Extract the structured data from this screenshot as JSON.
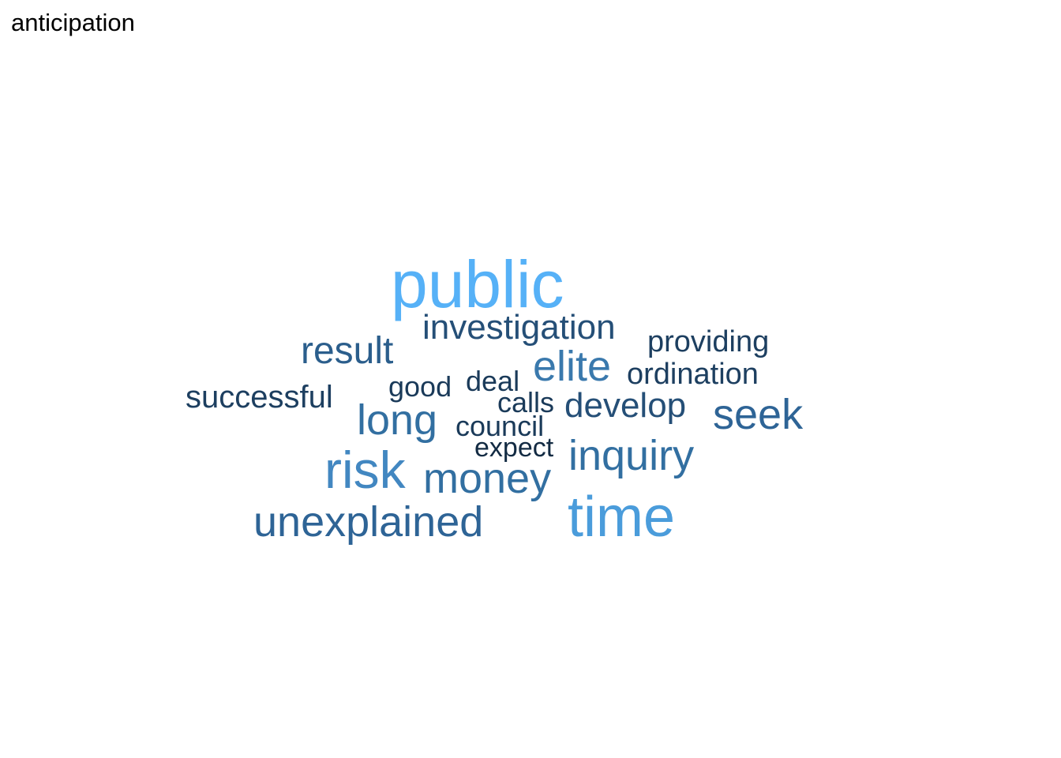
{
  "chart_data": {
    "type": "wordcloud",
    "title": "anticipation",
    "scale": "word size and color intensity indicate relative frequency",
    "words": [
      {
        "text": "public",
        "weight": 10,
        "color": "#56b1f7"
      },
      {
        "text": "time",
        "weight": 9,
        "color": "#4a9cdb"
      },
      {
        "text": "risk",
        "weight": 8,
        "color": "#4287c1"
      },
      {
        "text": "inquiry",
        "weight": 7,
        "color": "#326fa1"
      },
      {
        "text": "money",
        "weight": 7,
        "color": "#326fa1"
      },
      {
        "text": "unexplained",
        "weight": 7,
        "color": "#2e6496"
      },
      {
        "text": "elite",
        "weight": 7,
        "color": "#3a79ad"
      },
      {
        "text": "seek",
        "weight": 7,
        "color": "#2e6496"
      },
      {
        "text": "long",
        "weight": 7,
        "color": "#326fa1"
      },
      {
        "text": "result",
        "weight": 6,
        "color": "#2b5e8c"
      },
      {
        "text": "investigation",
        "weight": 5,
        "color": "#254f77"
      },
      {
        "text": "develop",
        "weight": 5,
        "color": "#254f77"
      },
      {
        "text": "successful",
        "weight": 4,
        "color": "#1d3f60"
      },
      {
        "text": "providing",
        "weight": 4,
        "color": "#1d3f60"
      },
      {
        "text": "ordination",
        "weight": 4,
        "color": "#1d3f60"
      },
      {
        "text": "good",
        "weight": 3,
        "color": "#1a3a59"
      },
      {
        "text": "deal",
        "weight": 3,
        "color": "#1a3a59"
      },
      {
        "text": "calls",
        "weight": 3,
        "color": "#1a3a59"
      },
      {
        "text": "council",
        "weight": 3,
        "color": "#1a3a59"
      },
      {
        "text": "expect",
        "weight": 2,
        "color": "#132b43"
      }
    ]
  }
}
